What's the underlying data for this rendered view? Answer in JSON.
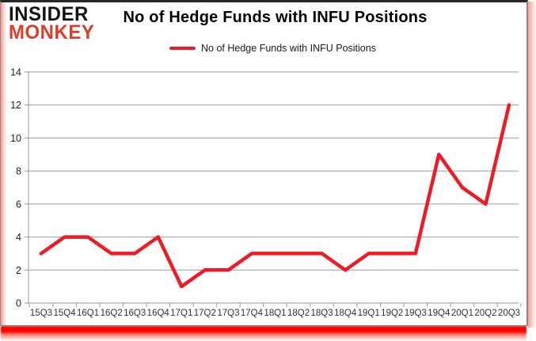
{
  "logo": {
    "line1": "INSIDER",
    "line2": "MONKEY"
  },
  "header": {
    "title": "No of Hedge Funds with INFU Positions"
  },
  "legend": {
    "label": "No of Hedge Funds with INFU Positions"
  },
  "colors": {
    "line": "#ed1c24",
    "logo_red": "#d8402c",
    "grid": "#9a9a9a",
    "axis": "#8c8c8c",
    "tick_text": "#333333",
    "border_glow": "#ff0400"
  },
  "chart_data": {
    "type": "line",
    "title": "No of Hedge Funds with INFU Positions",
    "categories": [
      "15Q3",
      "15Q4",
      "16Q1",
      "16Q2",
      "16Q3",
      "16Q4",
      "17Q1",
      "17Q2",
      "17Q3",
      "17Q4",
      "18Q1",
      "18Q2",
      "18Q3",
      "18Q4",
      "19Q1",
      "19Q2",
      "19Q3",
      "19Q4",
      "20Q1",
      "20Q2",
      "20Q3"
    ],
    "series": [
      {
        "name": "No of Hedge Funds with INFU Positions",
        "values": [
          3,
          4,
          4,
          3,
          3,
          4,
          1,
          2,
          2,
          3,
          3,
          3,
          3,
          2,
          3,
          3,
          3,
          9,
          7,
          6,
          12
        ]
      }
    ],
    "xlabel": "",
    "ylabel": "",
    "ylim": [
      0,
      14
    ],
    "ytick_step": 2,
    "grid": "horizontal",
    "legend_position": "top",
    "line_color": "#ed1c24"
  }
}
